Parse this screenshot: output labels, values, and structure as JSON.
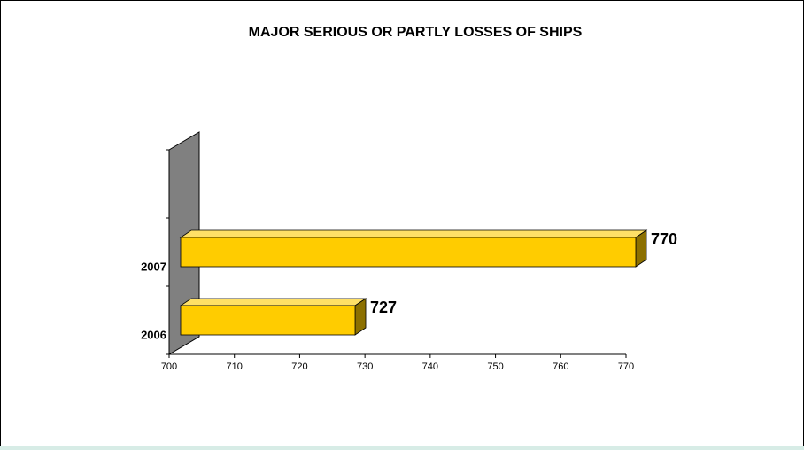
{
  "chart_data": {
    "type": "bar",
    "orientation": "horizontal",
    "three_d": true,
    "title": "MAJOR SERIOUS OR PARTLY LOSSES OF SHIPS",
    "xlabel": "",
    "ylabel": "",
    "categories": [
      "2006",
      "2007"
    ],
    "values": [
      727,
      770
    ],
    "data_labels": [
      "727",
      "770"
    ],
    "xlim": [
      700,
      770
    ],
    "x_ticks": [
      "700",
      "710",
      "720",
      "730",
      "740",
      "750",
      "760",
      "770"
    ],
    "grid": false,
    "legend": "none",
    "colors": {
      "bar_front": "#ffcc00",
      "bar_top": "#ffe066",
      "bar_side": "#8c7000",
      "back_wall": "#808080",
      "background": "#ffffff",
      "outer_border": "#d7ece6"
    }
  }
}
